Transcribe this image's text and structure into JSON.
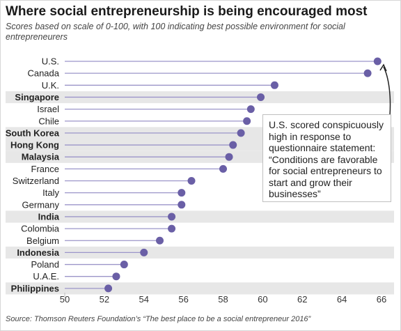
{
  "title": "Where social entrepreneurship is being encouraged most",
  "subtitle": "Scores based on scale of 0-100, with 100 indicating best possible environment for social entrepreneurers",
  "source": "Source: Thomson Reuters Foundation’s “The best place to be a social entrepreneur 2016”",
  "annotation": "U.S. scored conspicuously high in response to questionnaire statement: “Conditions are favorable for social entrepreneurs to start and grow their businesses”",
  "colors": {
    "dot": "#6a5fa6",
    "stem": "#9b95c9",
    "band": "#e7e7e7",
    "arrow": "#222222"
  },
  "chart_data": {
    "type": "lollipop",
    "categories": [
      "U.S.",
      "Canada",
      "U.K.",
      "Singapore",
      "Israel",
      "Chile",
      "South Korea",
      "Hong Kong",
      "Malaysia",
      "France",
      "Switzerland",
      "Italy",
      "Germany",
      "India",
      "Colombia",
      "Belgium",
      "Indonesia",
      "Poland",
      "U.A.E.",
      "Philippines"
    ],
    "values": [
      65.8,
      65.3,
      60.6,
      59.9,
      59.4,
      59.2,
      58.9,
      58.5,
      58.3,
      58.0,
      56.4,
      55.9,
      55.9,
      55.4,
      55.4,
      54.8,
      54.0,
      53.0,
      52.6,
      52.2
    ],
    "highlighted": [
      "Singapore",
      "South Korea",
      "Hong Kong",
      "Malaysia",
      "India",
      "Indonesia",
      "Philippines"
    ],
    "xlim": [
      50,
      66
    ],
    "xticks": [
      50,
      52,
      54,
      56,
      58,
      60,
      62,
      64,
      66
    ],
    "grid": false
  }
}
